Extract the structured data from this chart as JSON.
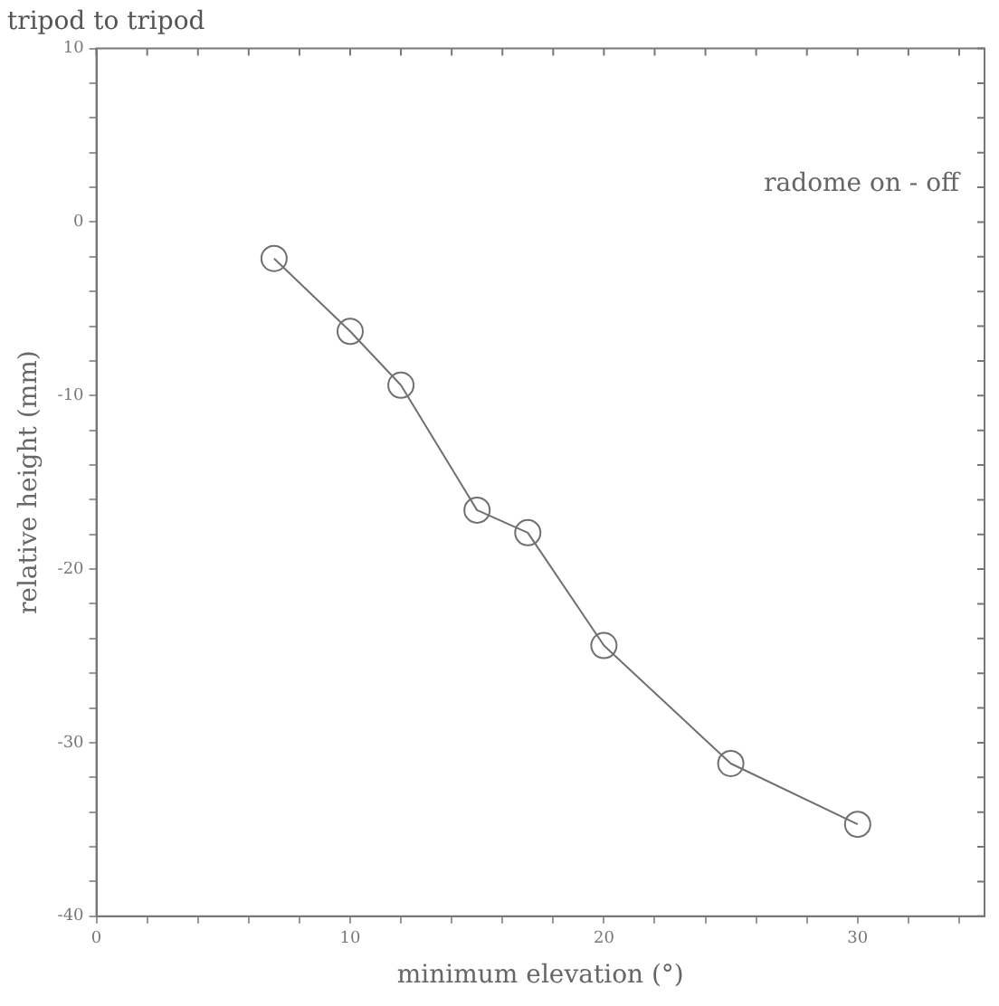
{
  "chart_data": {
    "type": "line",
    "title": "tripod to tripod",
    "xlabel": "minimum elevation (°)",
    "ylabel": "relative height (mm)",
    "annotations": [
      "radome on - off"
    ],
    "x": [
      7,
      10,
      12,
      15,
      17,
      20,
      25,
      30
    ],
    "series": [
      {
        "color": "#707070",
        "values": [
          -2.1,
          -6.3,
          -9.4,
          -16.6,
          -17.9,
          -24.4,
          -31.2,
          -34.7
        ]
      }
    ],
    "xlim": [
      0,
      35
    ],
    "xticks": [
      0,
      {
        "value": 2,
        "label": null
      },
      {
        "value": 4,
        "label": null
      },
      {
        "value": 6,
        "label": null
      },
      {
        "value": 8,
        "label": null
      },
      10,
      {
        "value": 12,
        "label": null
      },
      {
        "value": 14,
        "label": null
      },
      {
        "value": 16,
        "label": null
      },
      {
        "value": 18,
        "label": null
      },
      20,
      {
        "value": 22,
        "label": null
      },
      {
        "value": 24,
        "label": null
      },
      {
        "value": 26,
        "label": null
      },
      {
        "value": 28,
        "label": null
      },
      30,
      {
        "value": 32,
        "label": null
      },
      {
        "value": 34,
        "label": null
      }
    ],
    "ylim": [
      -40,
      10
    ],
    "yticks": [
      -40,
      {
        "value": -38,
        "label": null
      },
      {
        "value": -36,
        "label": null
      },
      {
        "value": -34,
        "label": null
      },
      {
        "value": -32,
        "label": null
      },
      -30,
      {
        "value": -28,
        "label": null
      },
      {
        "value": -26,
        "label": null
      },
      {
        "value": -24,
        "label": null
      },
      {
        "value": -22,
        "label": null
      },
      -20,
      {
        "value": -18,
        "label": null
      },
      {
        "value": -16,
        "label": null
      },
      {
        "value": -14,
        "label": null
      },
      {
        "value": -12,
        "label": null
      },
      -10,
      {
        "value": -8,
        "label": null
      },
      {
        "value": -6,
        "label": null
      },
      {
        "value": -4,
        "label": null
      },
      {
        "value": -2,
        "label": null
      },
      0,
      {
        "value": 2,
        "label": null
      },
      {
        "value": 4,
        "label": null
      },
      {
        "value": 6,
        "label": null
      },
      {
        "value": 8,
        "label": null
      },
      10
    ],
    "grid": false,
    "legend": false,
    "marker": "circle",
    "line_style": "solid"
  }
}
